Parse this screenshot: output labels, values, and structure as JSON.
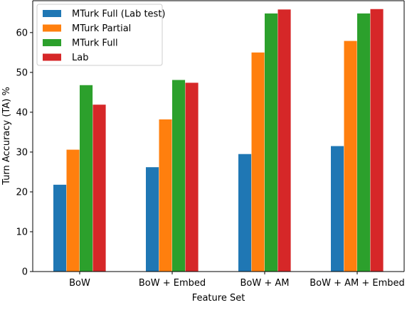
{
  "chart_data": {
    "type": "bar",
    "xlabel": "Feature Set",
    "ylabel": "Turn Accuracy (TA) %",
    "categories": [
      "BoW",
      "BoW + Embed",
      "BoW + AM",
      "BoW + AM + Embed"
    ],
    "ylim": [
      0,
      68
    ],
    "yticks": [
      0,
      10,
      20,
      30,
      40,
      50,
      60
    ],
    "grid": false,
    "legend_position": "top-left",
    "series": [
      {
        "name": "MTurk Full (Lab test)",
        "color": "#1f77b4",
        "values": [
          21.8,
          26.2,
          29.5,
          31.5
        ]
      },
      {
        "name": "MTurk Partial",
        "color": "#ff7f0e",
        "values": [
          30.6,
          38.2,
          55.0,
          57.9
        ]
      },
      {
        "name": "MTurk Full",
        "color": "#2ca02c",
        "values": [
          46.8,
          48.1,
          64.8,
          64.8
        ]
      },
      {
        "name": "Lab",
        "color": "#d62728",
        "values": [
          41.9,
          47.4,
          65.8,
          65.9
        ]
      }
    ]
  }
}
